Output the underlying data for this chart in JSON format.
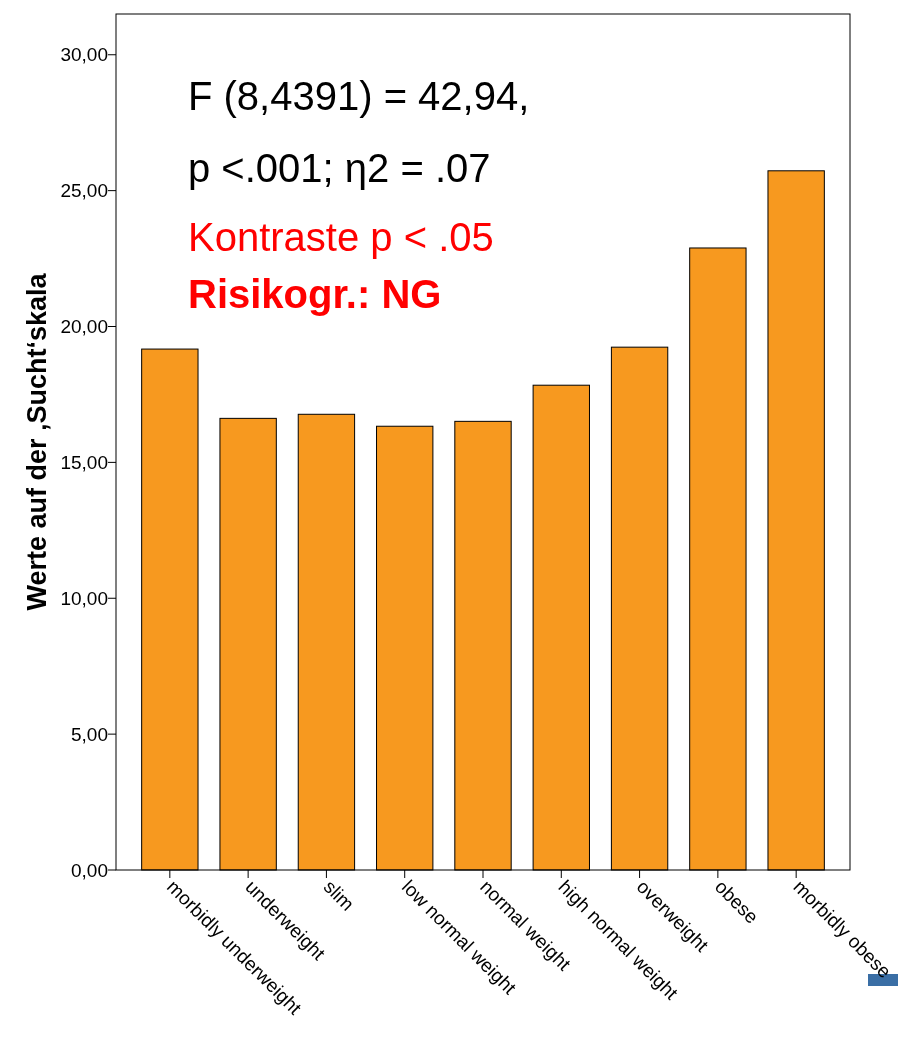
{
  "chart_data": {
    "type": "bar",
    "ylabel": "Werte auf der ‚Sucht‘skala",
    "categories": [
      "morbidly underweight",
      "underweight",
      "slim",
      "low normal weight",
      "normal weight",
      "high normal weight",
      "overweight",
      "obese",
      "morbidly obese"
    ],
    "values": [
      19.17,
      16.62,
      16.77,
      16.33,
      16.51,
      17.84,
      19.24,
      22.89,
      25.73
    ],
    "color": "#f7991f",
    "ylim": [
      0,
      31.5
    ],
    "yticks": [
      {
        "value": 0,
        "label": "0,00"
      },
      {
        "value": 5,
        "label": "5,00"
      },
      {
        "value": 10,
        "label": "10,00"
      },
      {
        "value": 15,
        "label": "15,00"
      },
      {
        "value": 20,
        "label": "20,00"
      },
      {
        "value": 25,
        "label": "25,00"
      },
      {
        "value": 30,
        "label": "30,00"
      }
    ],
    "grid": false,
    "annotations": [
      "F (8,4391) = 42,94,",
      "p <.001; η2 = .07",
      "Kontraste p < .05",
      "Risikogr.: NG"
    ]
  }
}
